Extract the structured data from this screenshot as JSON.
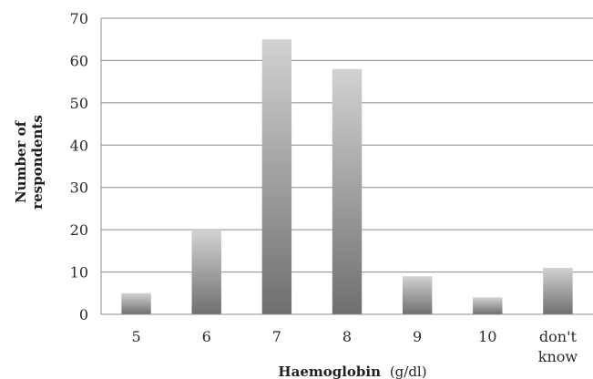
{
  "chart_data": {
    "type": "bar",
    "title": "",
    "xlabel_bold": "Haemoglobin",
    "xlabel_normal": "(g/dl)",
    "ylabel_line1": "Number of",
    "ylabel_line2": "respondents",
    "categories": [
      "5",
      "6",
      "7",
      "8",
      "9",
      "10",
      "don't know"
    ],
    "category_lines": [
      [
        "5"
      ],
      [
        "6"
      ],
      [
        "7"
      ],
      [
        "8"
      ],
      [
        "9"
      ],
      [
        "10"
      ],
      [
        "don't",
        "know"
      ]
    ],
    "values": [
      5,
      20,
      65,
      58,
      9,
      4,
      11
    ],
    "ylim": [
      0,
      70
    ],
    "yticks": [
      0,
      10,
      20,
      30,
      40,
      50,
      60,
      70
    ],
    "grid": true,
    "legend": "none",
    "colors": {
      "bar_top": "#d2d2d2",
      "bar_bottom": "#6f6f6f",
      "grid": "#8c8c8c",
      "axis": "#8c8c8c"
    }
  }
}
